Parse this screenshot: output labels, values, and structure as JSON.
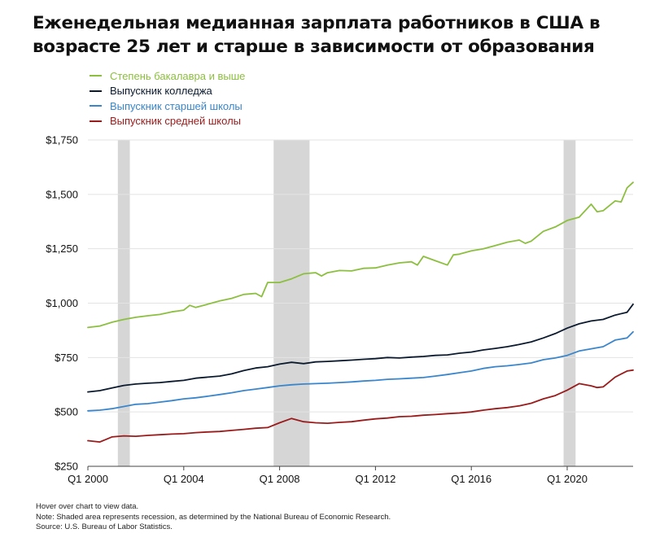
{
  "title_line1": "Еженедельная медианная зарплата работников в США в",
  "title_line2": "возрасте 25 лет и старше в зависимости от образования",
  "notes": {
    "hover": "Hover over chart to view data.",
    "note": "Note: Shaded area represents recession, as determined by the National Bureau of Economic Research.",
    "source": "Source: U.S. Bureau of Labor Statistics."
  },
  "chart_data": {
    "type": "line",
    "title": "Еженедельная медианная зарплата работников в США в возрасте 25 лет и старше в зависимости от образования",
    "xlabel": "",
    "ylabel": "",
    "x_range": [
      2000.0,
      2022.75
    ],
    "ylim": [
      250,
      1750
    ],
    "y_ticks": [
      250,
      500,
      750,
      1000,
      1250,
      1500,
      1750
    ],
    "y_tick_labels": [
      "$250",
      "$500",
      "$750",
      "$1,000",
      "$1,250",
      "$1,500",
      "$1,750"
    ],
    "x_ticks": [
      2000,
      2004,
      2008,
      2012,
      2016,
      2020
    ],
    "x_tick_labels": [
      "Q1 2000",
      "Q1 2004",
      "Q1 2008",
      "Q1 2012",
      "Q1 2016",
      "Q1 2020"
    ],
    "grid": "horizontal",
    "legend_position": "top-left",
    "recessions": [
      [
        2001.25,
        2001.75
      ],
      [
        2007.75,
        2009.25
      ],
      [
        2019.85,
        2020.35
      ]
    ],
    "series": [
      {
        "name": "Степень бакалавра и выше",
        "color": "#8cbf3f",
        "points": [
          [
            2000,
            888
          ],
          [
            2000.5,
            895
          ],
          [
            2001,
            912
          ],
          [
            2001.5,
            925
          ],
          [
            2002,
            935
          ],
          [
            2002.5,
            942
          ],
          [
            2003,
            948
          ],
          [
            2003.5,
            960
          ],
          [
            2004,
            968
          ],
          [
            2004.25,
            990
          ],
          [
            2004.5,
            980
          ],
          [
            2005,
            995
          ],
          [
            2005.5,
            1010
          ],
          [
            2006,
            1022
          ],
          [
            2006.5,
            1040
          ],
          [
            2007,
            1045
          ],
          [
            2007.25,
            1030
          ],
          [
            2007.5,
            1095
          ],
          [
            2008,
            1095
          ],
          [
            2008.5,
            1112
          ],
          [
            2009,
            1135
          ],
          [
            2009.5,
            1140
          ],
          [
            2009.75,
            1125
          ],
          [
            2010,
            1140
          ],
          [
            2010.5,
            1150
          ],
          [
            2011,
            1148
          ],
          [
            2011.5,
            1160
          ],
          [
            2012,
            1162
          ],
          [
            2012.5,
            1175
          ],
          [
            2013,
            1185
          ],
          [
            2013.5,
            1190
          ],
          [
            2013.75,
            1175
          ],
          [
            2014,
            1215
          ],
          [
            2014.5,
            1195
          ],
          [
            2015,
            1175
          ],
          [
            2015.25,
            1222
          ],
          [
            2015.5,
            1225
          ],
          [
            2016,
            1240
          ],
          [
            2016.5,
            1250
          ],
          [
            2017,
            1265
          ],
          [
            2017.5,
            1280
          ],
          [
            2018,
            1290
          ],
          [
            2018.25,
            1275
          ],
          [
            2018.5,
            1285
          ],
          [
            2019,
            1330
          ],
          [
            2019.5,
            1350
          ],
          [
            2020,
            1380
          ],
          [
            2020.5,
            1395
          ],
          [
            2021,
            1455
          ],
          [
            2021.25,
            1420
          ],
          [
            2021.5,
            1425
          ],
          [
            2022,
            1470
          ],
          [
            2022.25,
            1465
          ],
          [
            2022.5,
            1530
          ],
          [
            2022.75,
            1555
          ]
        ]
      },
      {
        "name": "Выпускник колледжа",
        "color": "#0b1a2e",
        "points": [
          [
            2000,
            592
          ],
          [
            2000.5,
            598
          ],
          [
            2001,
            610
          ],
          [
            2001.5,
            622
          ],
          [
            2002,
            628
          ],
          [
            2002.5,
            632
          ],
          [
            2003,
            635
          ],
          [
            2003.5,
            640
          ],
          [
            2004,
            645
          ],
          [
            2004.5,
            655
          ],
          [
            2005,
            660
          ],
          [
            2005.5,
            665
          ],
          [
            2006,
            675
          ],
          [
            2006.5,
            690
          ],
          [
            2007,
            702
          ],
          [
            2007.5,
            708
          ],
          [
            2008,
            720
          ],
          [
            2008.5,
            728
          ],
          [
            2009,
            722
          ],
          [
            2009.5,
            730
          ],
          [
            2010,
            732
          ],
          [
            2010.5,
            735
          ],
          [
            2011,
            738
          ],
          [
            2011.5,
            742
          ],
          [
            2012,
            745
          ],
          [
            2012.5,
            750
          ],
          [
            2013,
            748
          ],
          [
            2013.5,
            752
          ],
          [
            2014,
            755
          ],
          [
            2014.5,
            760
          ],
          [
            2015,
            762
          ],
          [
            2015.5,
            770
          ],
          [
            2016,
            775
          ],
          [
            2016.5,
            785
          ],
          [
            2017,
            792
          ],
          [
            2017.5,
            800
          ],
          [
            2018,
            810
          ],
          [
            2018.5,
            822
          ],
          [
            2019,
            840
          ],
          [
            2019.5,
            860
          ],
          [
            2020,
            885
          ],
          [
            2020.5,
            905
          ],
          [
            2021,
            918
          ],
          [
            2021.5,
            925
          ],
          [
            2022,
            945
          ],
          [
            2022.5,
            958
          ],
          [
            2022.75,
            995
          ]
        ]
      },
      {
        "name": "Выпускник старшей школы",
        "color": "#3a86cc",
        "points": [
          [
            2000,
            505
          ],
          [
            2000.5,
            508
          ],
          [
            2001,
            515
          ],
          [
            2001.5,
            525
          ],
          [
            2002,
            535
          ],
          [
            2002.5,
            538
          ],
          [
            2003,
            545
          ],
          [
            2003.5,
            552
          ],
          [
            2004,
            560
          ],
          [
            2004.5,
            565
          ],
          [
            2005,
            572
          ],
          [
            2005.5,
            580
          ],
          [
            2006,
            588
          ],
          [
            2006.5,
            598
          ],
          [
            2007,
            605
          ],
          [
            2007.5,
            612
          ],
          [
            2008,
            620
          ],
          [
            2008.5,
            625
          ],
          [
            2009,
            628
          ],
          [
            2009.5,
            630
          ],
          [
            2010,
            632
          ],
          [
            2010.5,
            635
          ],
          [
            2011,
            638
          ],
          [
            2011.5,
            642
          ],
          [
            2012,
            645
          ],
          [
            2012.5,
            650
          ],
          [
            2013,
            652
          ],
          [
            2013.5,
            655
          ],
          [
            2014,
            658
          ],
          [
            2014.5,
            665
          ],
          [
            2015,
            672
          ],
          [
            2015.5,
            680
          ],
          [
            2016,
            688
          ],
          [
            2016.5,
            700
          ],
          [
            2017,
            708
          ],
          [
            2017.5,
            712
          ],
          [
            2018,
            718
          ],
          [
            2018.5,
            725
          ],
          [
            2019,
            740
          ],
          [
            2019.5,
            748
          ],
          [
            2020,
            760
          ],
          [
            2020.5,
            780
          ],
          [
            2021,
            790
          ],
          [
            2021.5,
            800
          ],
          [
            2022,
            830
          ],
          [
            2022.5,
            840
          ],
          [
            2022.75,
            868
          ]
        ]
      },
      {
        "name": "Выпускник средней школы",
        "color": "#9a1b1b",
        "points": [
          [
            2000,
            368
          ],
          [
            2000.5,
            362
          ],
          [
            2001,
            385
          ],
          [
            2001.5,
            390
          ],
          [
            2002,
            388
          ],
          [
            2002.5,
            392
          ],
          [
            2003,
            395
          ],
          [
            2003.5,
            398
          ],
          [
            2004,
            400
          ],
          [
            2004.5,
            405
          ],
          [
            2005,
            408
          ],
          [
            2005.5,
            410
          ],
          [
            2006,
            415
          ],
          [
            2006.5,
            420
          ],
          [
            2007,
            425
          ],
          [
            2007.5,
            428
          ],
          [
            2008,
            450
          ],
          [
            2008.5,
            470
          ],
          [
            2009,
            455
          ],
          [
            2009.5,
            450
          ],
          [
            2010,
            448
          ],
          [
            2010.5,
            452
          ],
          [
            2011,
            455
          ],
          [
            2011.5,
            462
          ],
          [
            2012,
            468
          ],
          [
            2012.5,
            472
          ],
          [
            2013,
            478
          ],
          [
            2013.5,
            480
          ],
          [
            2014,
            485
          ],
          [
            2014.5,
            488
          ],
          [
            2015,
            492
          ],
          [
            2015.5,
            495
          ],
          [
            2016,
            500
          ],
          [
            2016.5,
            508
          ],
          [
            2017,
            515
          ],
          [
            2017.5,
            520
          ],
          [
            2018,
            528
          ],
          [
            2018.5,
            540
          ],
          [
            2019,
            560
          ],
          [
            2019.5,
            575
          ],
          [
            2020,
            600
          ],
          [
            2020.5,
            630
          ],
          [
            2021,
            620
          ],
          [
            2021.25,
            612
          ],
          [
            2021.5,
            615
          ],
          [
            2022,
            660
          ],
          [
            2022.5,
            688
          ],
          [
            2022.75,
            692
          ]
        ]
      }
    ]
  }
}
